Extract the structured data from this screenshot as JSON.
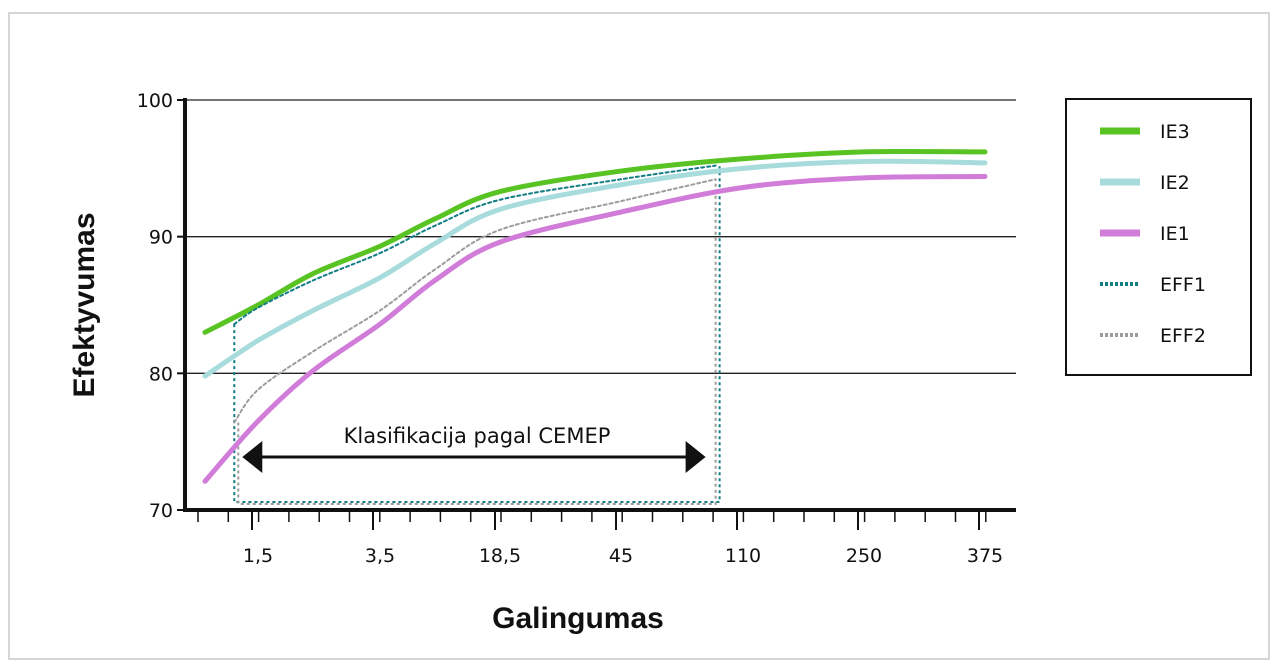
{
  "chart_data": {
    "type": "line",
    "xlabel": "Galingumas",
    "ylabel": "Efektyvumas",
    "ylim": [
      70,
      100
    ],
    "yticks": [
      "70",
      "80",
      "90",
      "100"
    ],
    "xtick_labels": [
      "1,5",
      "3,5",
      "18,5",
      "45",
      "110",
      "250",
      "375"
    ],
    "grid": "horizontal",
    "legend_position": "right",
    "series": [
      {
        "name": "IE3",
        "style": "solid",
        "color": "#58c322",
        "x": [
          0.75,
          1.5,
          2.2,
          3.5,
          7.5,
          18.5,
          45,
          110,
          250,
          375
        ],
        "y": [
          83,
          85,
          87.3,
          89.3,
          91.3,
          93.3,
          94.8,
          95.7,
          96.2,
          96.2
        ]
      },
      {
        "name": "IE2",
        "style": "solid",
        "color": "#a8dcdc",
        "x": [
          0.75,
          1.5,
          2.2,
          3.5,
          7.5,
          18.5,
          45,
          110,
          250,
          375
        ],
        "y": [
          79.8,
          82.4,
          84.6,
          87.0,
          89.5,
          92.0,
          93.8,
          95.0,
          95.5,
          95.4
        ]
      },
      {
        "name": "IE1",
        "style": "solid",
        "color": "#d07cd8",
        "x": [
          0.75,
          1.5,
          2.2,
          3.5,
          7.5,
          18.5,
          45,
          110,
          250,
          375
        ],
        "y": [
          72.1,
          76.5,
          80.2,
          83.6,
          86.8,
          89.6,
          91.8,
          93.6,
          94.3,
          94.4
        ]
      },
      {
        "name": "EFF1",
        "style": "dotted",
        "color": "#137d84",
        "x": [
          1.1,
          1.5,
          2.2,
          3.5,
          7.5,
          18.5,
          45,
          90
        ],
        "y": [
          83.6,
          84.8,
          86.8,
          88.8,
          90.8,
          92.7,
          94.2,
          95.2
        ]
      },
      {
        "name": "EFF2",
        "style": "dotted",
        "color": "#9c9c9c",
        "x": [
          1.1,
          1.5,
          2.2,
          3.5,
          7.5,
          18.5,
          45,
          90
        ],
        "y": [
          76.4,
          78.8,
          81.6,
          84.6,
          87.6,
          90.5,
          92.6,
          94.2
        ]
      }
    ],
    "annotation": {
      "text": "Klasifikacija pagal CEMEP",
      "x_range": [
        1.1,
        90
      ]
    }
  }
}
